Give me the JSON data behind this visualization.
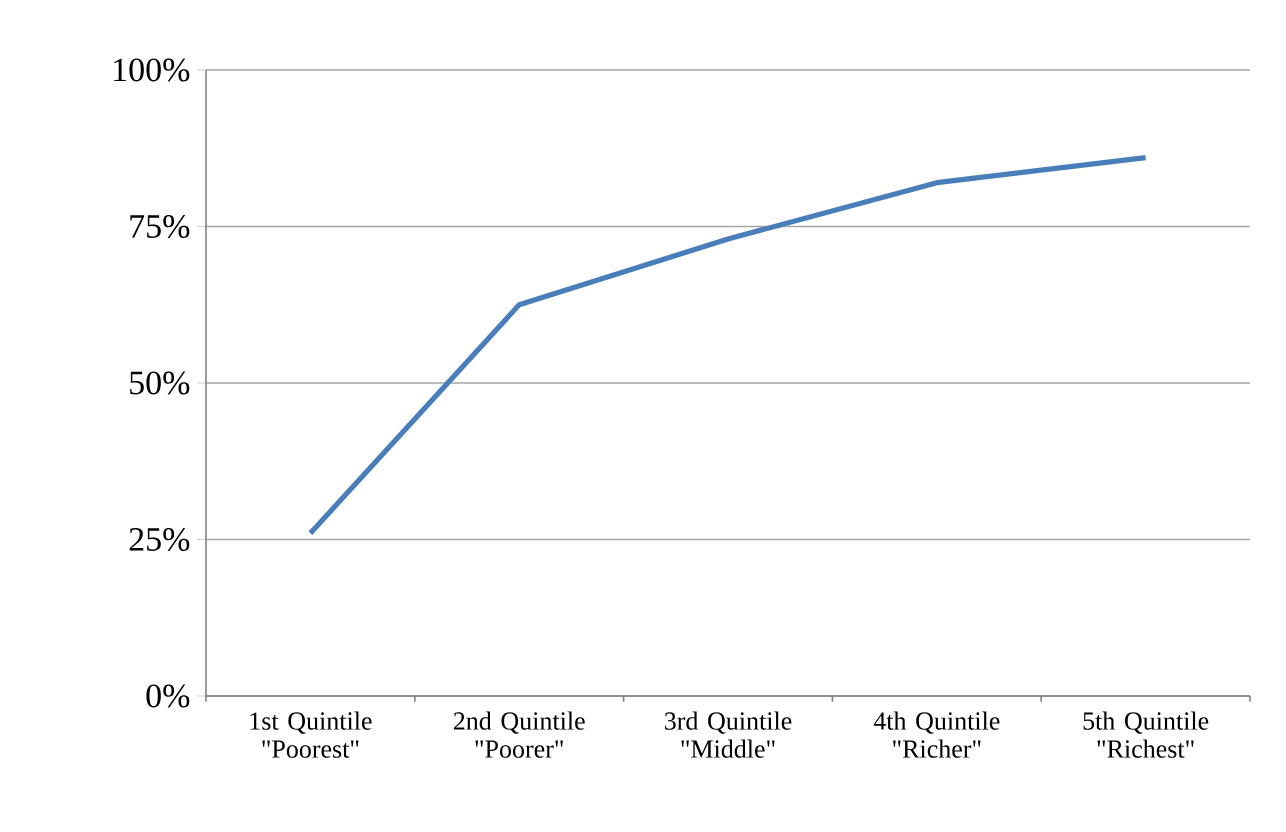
{
  "chart_data": {
    "type": "line",
    "categories": [
      "1st Quintile \"Poorest\"",
      "2nd Quintile \"Poorer\"",
      "3rd Quintile \"Middle\"",
      "4th Quintile \"Richer\"",
      "5th Quintile \"Richest\""
    ],
    "series": [
      {
        "color": "#4a7ebb",
        "values": [
          26,
          62.5,
          73,
          82,
          86
        ]
      }
    ],
    "ylim": [
      0,
      100
    ],
    "yticks": [
      {
        "value": 0,
        "label": "0%"
      },
      {
        "value": 25,
        "label": "25%"
      },
      {
        "value": 50,
        "label": "50%"
      },
      {
        "value": 75,
        "label": "75%"
      },
      {
        "value": 100,
        "label": "100%"
      }
    ],
    "grid": "y",
    "legend": false,
    "marker": "none",
    "line_style": "solid"
  }
}
